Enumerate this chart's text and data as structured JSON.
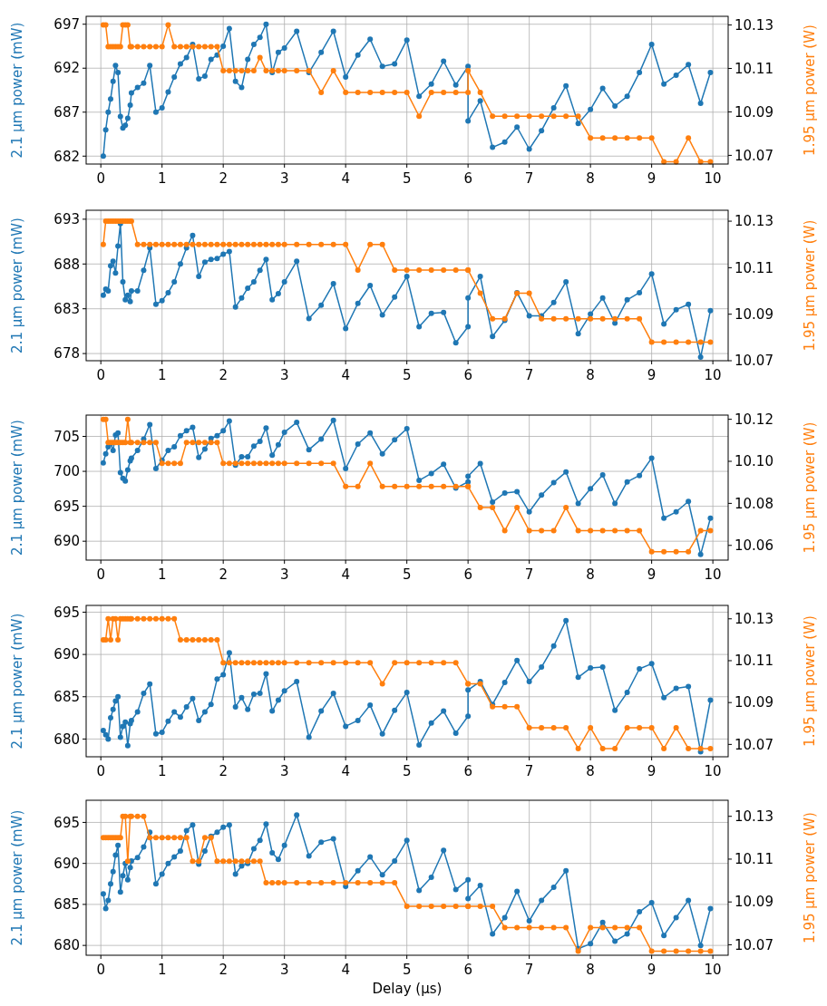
{
  "chart_data": [
    {
      "type": "line",
      "ylabel": "2.1 µm power (mW)",
      "y2label": "1.95 µm power (W)",
      "xlim": [
        -0.24,
        10.25
      ],
      "xticks": [
        0,
        1,
        2,
        3,
        4,
        5,
        6,
        7,
        8,
        9,
        10
      ],
      "ylim": [
        681.1,
        697.9
      ],
      "yticks": [
        682,
        687,
        692,
        697
      ],
      "y2lim": [
        10.066,
        10.134
      ],
      "y2ticks": [
        10.07,
        10.09,
        10.11,
        10.13
      ],
      "grid": true,
      "marker": "circle",
      "x": [
        0.04,
        0.08,
        0.12,
        0.16,
        0.2,
        0.24,
        0.28,
        0.32,
        0.36,
        0.4,
        0.44,
        0.48,
        0.5,
        0.6,
        0.7,
        0.8,
        0.9,
        1,
        1.1,
        1.2,
        1.3,
        1.4,
        1.5,
        1.6,
        1.7,
        1.8,
        1.9,
        2,
        2.1,
        2.2,
        2.3,
        2.4,
        2.5,
        2.6,
        2.7,
        2.8,
        2.9,
        3,
        3.2,
        3.4,
        3.6,
        3.8,
        4,
        4.2,
        4.4,
        4.6,
        4.8,
        5,
        5.2,
        5.4,
        5.6,
        5.8,
        6,
        6,
        6.2,
        6.4,
        6.6,
        6.8,
        7,
        7.2,
        7.4,
        7.6,
        7.8,
        8,
        8.2,
        8.4,
        8.6,
        8.8,
        9,
        9.2,
        9.4,
        9.6,
        9.8,
        9.96
      ],
      "series": [
        {
          "color": "#1f77b4",
          "values": [
            682,
            685,
            687,
            688.5,
            690.5,
            692.3,
            691.5,
            686.5,
            685.2,
            685.5,
            686.3,
            687.8,
            689.2,
            689.8,
            690.3,
            692.3,
            687,
            687.5,
            689.3,
            691,
            692.5,
            693.2,
            694.7,
            690.8,
            691.1,
            693,
            693.5,
            694.5,
            696.5,
            690.5,
            689.8,
            693,
            694.7,
            695.5,
            697,
            691.5,
            693.8,
            694.3,
            696.2,
            691.5,
            693.8,
            696.2,
            691,
            693.5,
            695.3,
            692.2,
            692.5,
            695.2,
            688.8,
            690.2,
            692.8,
            690.1,
            692.2,
            686,
            688.3,
            683,
            683.6,
            685.3,
            682.8,
            684.9,
            687.5,
            690,
            685.7,
            687.3,
            689.7,
            687.7,
            688.8,
            691.5,
            694.7,
            690.2,
            691.2,
            692.4,
            688,
            691.5
          ]
        },
        {
          "color": "#ff7f0e",
          "axis": "y2",
          "values": [
            10.13,
            10.13,
            10.12,
            10.12,
            10.12,
            10.12,
            10.12,
            10.12,
            10.13,
            10.13,
            10.13,
            10.12,
            10.12,
            10.12,
            10.12,
            10.12,
            10.12,
            10.12,
            10.13,
            10.12,
            10.12,
            10.12,
            10.12,
            10.12,
            10.12,
            10.12,
            10.12,
            10.109,
            10.109,
            10.109,
            10.109,
            10.109,
            10.109,
            10.115,
            10.109,
            10.109,
            10.109,
            10.109,
            10.109,
            10.109,
            10.099,
            10.109,
            10.099,
            10.099,
            10.099,
            10.099,
            10.099,
            10.099,
            10.088,
            10.099,
            10.099,
            10.099,
            10.099,
            10.109,
            10.099,
            10.088,
            10.088,
            10.088,
            10.088,
            10.088,
            10.088,
            10.088,
            10.088,
            10.078,
            10.078,
            10.078,
            10.078,
            10.078,
            10.078,
            10.067,
            10.067,
            10.078,
            10.067,
            10.067
          ]
        }
      ]
    },
    {
      "type": "line",
      "ylabel": "2.1 µm power (mW)",
      "y2label": "1.95 µm power (W)",
      "xlim": [
        -0.24,
        10.25
      ],
      "xticks": [
        0,
        1,
        2,
        3,
        4,
        5,
        6,
        7,
        8,
        9,
        10
      ],
      "ylim": [
        677.2,
        694
      ],
      "yticks": [
        678,
        683,
        688,
        693
      ],
      "y2lim": [
        10.07,
        10.1347
      ],
      "y2ticks": [
        10.07,
        10.09,
        10.11,
        10.13
      ],
      "grid": true,
      "marker": "circle",
      "x": [
        0.04,
        0.08,
        0.12,
        0.16,
        0.2,
        0.24,
        0.28,
        0.32,
        0.36,
        0.4,
        0.44,
        0.48,
        0.5,
        0.6,
        0.7,
        0.8,
        0.9,
        1,
        1.1,
        1.2,
        1.3,
        1.4,
        1.5,
        1.6,
        1.7,
        1.8,
        1.9,
        2,
        2.1,
        2.2,
        2.3,
        2.4,
        2.5,
        2.6,
        2.7,
        2.8,
        2.9,
        3,
        3.2,
        3.4,
        3.6,
        3.8,
        4,
        4.2,
        4.4,
        4.6,
        4.8,
        5,
        5.2,
        5.4,
        5.6,
        5.8,
        6,
        6,
        6.2,
        6.4,
        6.6,
        6.8,
        7,
        7.2,
        7.4,
        7.6,
        7.8,
        8,
        8.2,
        8.4,
        8.6,
        8.8,
        9,
        9.2,
        9.4,
        9.6,
        9.8,
        9.96
      ],
      "series": [
        {
          "color": "#1f77b4",
          "values": [
            684.5,
            685.2,
            685,
            687.8,
            688.3,
            687,
            690,
            692.5,
            686,
            684,
            684.5,
            683.8,
            685,
            685,
            687.3,
            689.8,
            683.5,
            683.9,
            684.8,
            686,
            688,
            689.8,
            691.2,
            686.6,
            688.2,
            688.5,
            688.6,
            689.1,
            689.4,
            683.2,
            684.2,
            685.3,
            686,
            687.3,
            688.5,
            684,
            684.7,
            686,
            688.3,
            681.9,
            683.4,
            685.8,
            680.8,
            683.6,
            685.6,
            682.3,
            684.3,
            686.6,
            681,
            682.5,
            682.6,
            679.2,
            681,
            684.2,
            686.6,
            679.9,
            681.7,
            684.8,
            682.2,
            682.2,
            683.7,
            686,
            680.2,
            682.4,
            684.2,
            681.4,
            684,
            684.8,
            686.9,
            681.3,
            682.9,
            683.5,
            677.6,
            682.8
          ]
        },
        {
          "color": "#ff7f0e",
          "axis": "y2",
          "values": [
            10.12,
            10.13,
            10.13,
            10.13,
            10.13,
            10.13,
            10.13,
            10.13,
            10.13,
            10.13,
            10.13,
            10.13,
            10.13,
            10.12,
            10.12,
            10.12,
            10.12,
            10.12,
            10.12,
            10.12,
            10.12,
            10.12,
            10.12,
            10.12,
            10.12,
            10.12,
            10.12,
            10.12,
            10.12,
            10.12,
            10.12,
            10.12,
            10.12,
            10.12,
            10.12,
            10.12,
            10.12,
            10.12,
            10.12,
            10.12,
            10.12,
            10.12,
            10.12,
            10.109,
            10.12,
            10.12,
            10.109,
            10.109,
            10.109,
            10.109,
            10.109,
            10.109,
            10.109,
            10.109,
            10.099,
            10.088,
            10.088,
            10.099,
            10.099,
            10.088,
            10.088,
            10.088,
            10.088,
            10.088,
            10.088,
            10.088,
            10.088,
            10.088,
            10.078,
            10.078,
            10.078,
            10.078,
            10.078,
            10.078
          ]
        }
      ]
    },
    {
      "type": "line",
      "ylabel": "2.1 µm power (mW)",
      "y2label": "1.95 µm power (W)",
      "xlim": [
        -0.24,
        10.25
      ],
      "xticks": [
        0,
        1,
        2,
        3,
        4,
        5,
        6,
        7,
        8,
        9,
        10
      ],
      "ylim": [
        687.3,
        708.05
      ],
      "yticks": [
        690,
        695,
        700,
        705
      ],
      "y2lim": [
        10.053,
        10.122
      ],
      "y2ticks": [
        10.06,
        10.08,
        {
          "value": 10.1,
          "label": "10.10"
        },
        10.12
      ],
      "grid": true,
      "marker": "circle",
      "x": [
        0.04,
        0.08,
        0.12,
        0.16,
        0.2,
        0.24,
        0.28,
        0.32,
        0.36,
        0.4,
        0.44,
        0.48,
        0.5,
        0.6,
        0.7,
        0.8,
        0.9,
        1,
        1.1,
        1.2,
        1.3,
        1.4,
        1.5,
        1.6,
        1.7,
        1.8,
        1.9,
        2,
        2.1,
        2.2,
        2.3,
        2.4,
        2.5,
        2.6,
        2.7,
        2.8,
        2.9,
        3,
        3.2,
        3.4,
        3.6,
        3.8,
        4,
        4.2,
        4.4,
        4.6,
        4.8,
        5,
        5.2,
        5.4,
        5.6,
        5.8,
        6,
        6,
        6.2,
        6.4,
        6.6,
        6.8,
        7,
        7.2,
        7.4,
        7.6,
        7.8,
        8,
        8.2,
        8.4,
        8.6,
        8.8,
        9,
        9.2,
        9.4,
        9.6,
        9.8,
        9.96
      ],
      "series": [
        {
          "color": "#1f77b4",
          "values": [
            701.2,
            702.5,
            703.5,
            704,
            703,
            705.2,
            705.5,
            699.8,
            699,
            698.6,
            700.2,
            701.5,
            701.9,
            703,
            704.6,
            706.7,
            700.4,
            701.6,
            703,
            703.5,
            705.1,
            705.8,
            706.3,
            702,
            703.2,
            704.7,
            705.1,
            705.8,
            707.2,
            700.9,
            702.1,
            702.1,
            703.6,
            704.3,
            706.2,
            702.3,
            703.8,
            705.6,
            707,
            703.1,
            704.6,
            707.3,
            700.4,
            703.9,
            705.5,
            702.5,
            704.5,
            706.1,
            698.7,
            699.7,
            701,
            697.6,
            698.5,
            699.3,
            701.1,
            695.6,
            696.9,
            697.1,
            694.2,
            696.6,
            698.4,
            699.9,
            695.4,
            697.5,
            699.5,
            695.4,
            698.5,
            699.4,
            701.9,
            693.3,
            694.2,
            695.7,
            688.1,
            693.3
          ]
        },
        {
          "color": "#ff7f0e",
          "axis": "y2",
          "values": [
            10.12,
            10.12,
            10.109,
            10.109,
            10.109,
            10.109,
            10.109,
            10.109,
            10.109,
            10.109,
            10.12,
            10.109,
            10.109,
            10.109,
            10.109,
            10.109,
            10.109,
            10.099,
            10.099,
            10.099,
            10.099,
            10.109,
            10.109,
            10.109,
            10.109,
            10.109,
            10.109,
            10.099,
            10.099,
            10.099,
            10.099,
            10.099,
            10.099,
            10.099,
            10.099,
            10.099,
            10.099,
            10.099,
            10.099,
            10.099,
            10.099,
            10.099,
            10.088,
            10.088,
            10.099,
            10.088,
            10.088,
            10.088,
            10.088,
            10.088,
            10.088,
            10.088,
            10.088,
            10.088,
            10.078,
            10.078,
            10.067,
            10.078,
            10.067,
            10.067,
            10.067,
            10.078,
            10.067,
            10.067,
            10.067,
            10.067,
            10.067,
            10.067,
            10.057,
            10.057,
            10.057,
            10.057,
            10.067,
            10.067
          ]
        }
      ]
    },
    {
      "type": "line",
      "ylabel": "2.1 µm power (mW)",
      "y2label": "1.95 µm power (W)",
      "xlim": [
        -0.24,
        10.25
      ],
      "xticks": [
        0,
        1,
        2,
        3,
        4,
        5,
        6,
        7,
        8,
        9,
        10
      ],
      "ylim": [
        677.9,
        695.8
      ],
      "yticks": [
        680,
        685,
        690,
        695
      ],
      "y2lim": [
        10.0641,
        10.1364
      ],
      "y2ticks": [
        10.07,
        10.09,
        10.11,
        10.13
      ],
      "grid": true,
      "marker": "circle",
      "x": [
        0.04,
        0.08,
        0.12,
        0.16,
        0.2,
        0.24,
        0.28,
        0.32,
        0.36,
        0.4,
        0.44,
        0.48,
        0.5,
        0.6,
        0.7,
        0.8,
        0.9,
        1,
        1.1,
        1.2,
        1.3,
        1.4,
        1.5,
        1.6,
        1.7,
        1.8,
        1.9,
        2,
        2.1,
        2.2,
        2.3,
        2.4,
        2.5,
        2.6,
        2.7,
        2.8,
        2.9,
        3,
        3.2,
        3.4,
        3.6,
        3.8,
        4,
        4.2,
        4.4,
        4.6,
        4.8,
        5,
        5.2,
        5.4,
        5.6,
        5.8,
        6,
        6,
        6.2,
        6.4,
        6.6,
        6.8,
        7,
        7.2,
        7.4,
        7.6,
        7.8,
        8,
        8.2,
        8.4,
        8.6,
        8.8,
        9,
        9.2,
        9.4,
        9.6,
        9.8,
        9.96
      ],
      "series": [
        {
          "color": "#1f77b4",
          "values": [
            681,
            680.5,
            680,
            682.5,
            683.5,
            684.5,
            685,
            680.2,
            681.5,
            682,
            679.2,
            681.8,
            682.2,
            683.2,
            685.4,
            686.5,
            680.6,
            680.8,
            682.1,
            683.2,
            682.6,
            683.8,
            684.8,
            682.2,
            683.2,
            684.1,
            687.1,
            687.6,
            690.2,
            683.8,
            684.9,
            683.5,
            685.3,
            685.4,
            687.7,
            683.3,
            684.6,
            685.7,
            686.8,
            680.2,
            683.3,
            685.4,
            681.5,
            682.2,
            684,
            680.6,
            683.4,
            685.5,
            679.3,
            681.9,
            683.3,
            680.7,
            682.7,
            685.8,
            686.8,
            684.1,
            686.7,
            689.3,
            686.8,
            688.5,
            691,
            694,
            687.3,
            688.4,
            688.5,
            683.4,
            685.5,
            688.3,
            688.9,
            684.9,
            686,
            686.2,
            678.5,
            684.6
          ]
        },
        {
          "color": "#ff7f0e",
          "axis": "y2",
          "values": [
            10.12,
            10.12,
            10.13,
            10.12,
            10.13,
            10.13,
            10.12,
            10.13,
            10.13,
            10.13,
            10.13,
            10.13,
            10.13,
            10.13,
            10.13,
            10.13,
            10.13,
            10.13,
            10.13,
            10.13,
            10.12,
            10.12,
            10.12,
            10.12,
            10.12,
            10.12,
            10.12,
            10.109,
            10.109,
            10.109,
            10.109,
            10.109,
            10.109,
            10.109,
            10.109,
            10.109,
            10.109,
            10.109,
            10.109,
            10.109,
            10.109,
            10.109,
            10.109,
            10.109,
            10.109,
            10.099,
            10.109,
            10.109,
            10.109,
            10.109,
            10.109,
            10.109,
            10.099,
            10.099,
            10.099,
            10.088,
            10.088,
            10.088,
            10.078,
            10.078,
            10.078,
            10.078,
            10.068,
            10.078,
            10.068,
            10.068,
            10.078,
            10.078,
            10.078,
            10.068,
            10.078,
            10.068,
            10.068,
            10.068
          ]
        }
      ]
    },
    {
      "type": "line",
      "xlabel": "Delay (µs)",
      "ylabel": "2.1 µm power (mW)",
      "y2label": "1.95 µm power (W)",
      "xlim": [
        -0.24,
        10.25
      ],
      "xticks": [
        0,
        1,
        2,
        3,
        4,
        5,
        6,
        7,
        8,
        9,
        10
      ],
      "ylim": [
        678.8,
        697.7
      ],
      "yticks": [
        680,
        685,
        690,
        695
      ],
      "y2lim": [
        10.0651,
        10.1375
      ],
      "y2ticks": [
        10.07,
        10.09,
        10.11,
        10.13
      ],
      "grid": true,
      "marker": "circle",
      "x": [
        0.04,
        0.08,
        0.12,
        0.16,
        0.2,
        0.24,
        0.28,
        0.32,
        0.36,
        0.4,
        0.44,
        0.48,
        0.5,
        0.6,
        0.7,
        0.8,
        0.9,
        1,
        1.1,
        1.2,
        1.3,
        1.4,
        1.5,
        1.6,
        1.7,
        1.8,
        1.9,
        2,
        2.1,
        2.2,
        2.3,
        2.4,
        2.5,
        2.6,
        2.7,
        2.8,
        2.9,
        3,
        3.2,
        3.4,
        3.6,
        3.8,
        4,
        4.2,
        4.4,
        4.6,
        4.8,
        5,
        5.2,
        5.4,
        5.6,
        5.8,
        6,
        6,
        6.2,
        6.4,
        6.6,
        6.8,
        7,
        7.2,
        7.4,
        7.6,
        7.8,
        8,
        8.2,
        8.4,
        8.6,
        8.8,
        9,
        9.2,
        9.4,
        9.6,
        9.8,
        9.96
      ],
      "series": [
        {
          "color": "#1f77b4",
          "values": [
            686.3,
            684.5,
            685.5,
            687.5,
            689,
            691,
            692.2,
            686.5,
            688.5,
            690,
            688,
            689.5,
            690.3,
            690.7,
            692,
            693.8,
            687.5,
            688.7,
            690,
            690.8,
            691.5,
            694,
            694.7,
            689.9,
            691.5,
            693.3,
            693.8,
            694.4,
            694.7,
            688.7,
            689.7,
            690,
            691.8,
            692.8,
            694.8,
            691.3,
            690.5,
            692.2,
            695.9,
            690.9,
            692.6,
            693,
            687.2,
            689.1,
            690.8,
            688.6,
            690.3,
            692.8,
            686.7,
            688.3,
            691.6,
            686.8,
            688,
            685.7,
            687.3,
            681.4,
            683.4,
            686.6,
            683,
            685.5,
            687.1,
            689.1,
            679.6,
            680.2,
            682.8,
            680.5,
            681.4,
            684.1,
            685.2,
            681.2,
            683.4,
            685.5,
            680,
            684.5
          ]
        },
        {
          "color": "#ff7f0e",
          "axis": "y2",
          "values": [
            10.12,
            10.12,
            10.12,
            10.12,
            10.12,
            10.12,
            10.12,
            10.12,
            10.13,
            10.13,
            10.109,
            10.13,
            10.13,
            10.13,
            10.13,
            10.12,
            10.12,
            10.12,
            10.12,
            10.12,
            10.12,
            10.12,
            10.109,
            10.109,
            10.12,
            10.12,
            10.109,
            10.109,
            10.109,
            10.109,
            10.109,
            10.109,
            10.109,
            10.109,
            10.099,
            10.099,
            10.099,
            10.099,
            10.099,
            10.099,
            10.099,
            10.099,
            10.099,
            10.099,
            10.099,
            10.099,
            10.099,
            10.088,
            10.088,
            10.088,
            10.088,
            10.088,
            10.088,
            10.088,
            10.088,
            10.088,
            10.078,
            10.078,
            10.078,
            10.078,
            10.078,
            10.078,
            10.067,
            10.078,
            10.078,
            10.078,
            10.078,
            10.078,
            10.067,
            10.067,
            10.067,
            10.067,
            10.067,
            10.067
          ]
        }
      ]
    }
  ]
}
